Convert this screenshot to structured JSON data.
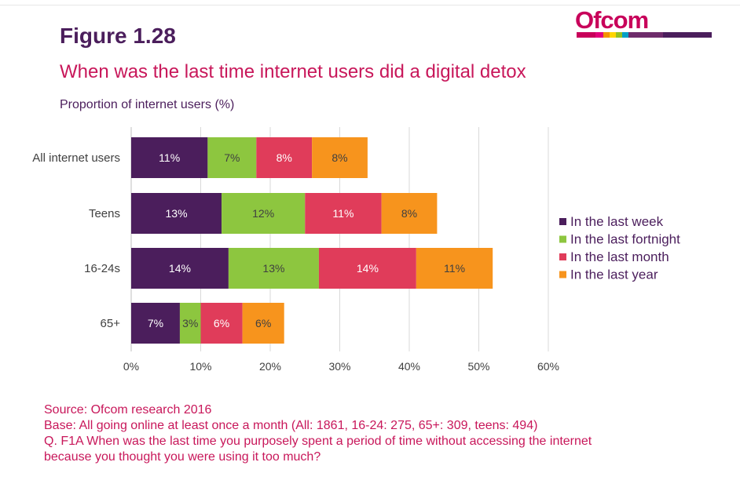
{
  "header": {
    "figure_label": "Figure 1.28",
    "title": "When was the last time internet users did a digital detox",
    "logo_text": "Ofcom",
    "logo_colors": [
      "#c8005a",
      "#e2007a",
      "#f39200",
      "#ffd500",
      "#95c11f",
      "#00a0c6",
      "#6e2c6b",
      "#4b1e5c"
    ]
  },
  "chart_data": {
    "type": "bar",
    "orientation": "horizontal",
    "stacked": true,
    "subtitle": "Proportion of internet users (%)",
    "categories": [
      "All internet users",
      "Teens",
      "16-24s",
      "65+"
    ],
    "series": [
      {
        "name": "In the last week",
        "color": "#4b1e5c",
        "values": [
          11,
          13,
          14,
          7
        ],
        "labels": [
          "11%",
          "13%",
          "14%",
          "7%"
        ]
      },
      {
        "name": "In the last fortnight",
        "color": "#8dc63f",
        "values": [
          7,
          12,
          13,
          3
        ],
        "labels": [
          "7%",
          "12%",
          "13%",
          "3%"
        ]
      },
      {
        "name": "In the last month",
        "color": "#e03c5a",
        "values": [
          8,
          11,
          14,
          6
        ],
        "labels": [
          "8%",
          "11%",
          "14%",
          "6%"
        ]
      },
      {
        "name": "In the last year",
        "color": "#f7941d",
        "values": [
          8,
          8,
          11,
          6
        ],
        "labels": [
          "8%",
          "8%",
          "11%",
          "6%"
        ]
      }
    ],
    "xlim": [
      0,
      60
    ],
    "xticks": [
      0,
      10,
      20,
      30,
      40,
      50,
      60
    ],
    "xtick_labels": [
      "0%",
      "10%",
      "20%",
      "30%",
      "40%",
      "50%",
      "60%"
    ],
    "grid": true,
    "legend_position": "right"
  },
  "footer": {
    "source": "Source: Ofcom research 2016",
    "base": "Base: All going online at least once a month (All: 1861, 16-24: 275, 65+: 309, teens: 494)",
    "question_line1": "Q. F1A When was the last time you purposely spent a period of time without accessing the internet",
    "question_line2": "because you thought you were using it too much?"
  }
}
